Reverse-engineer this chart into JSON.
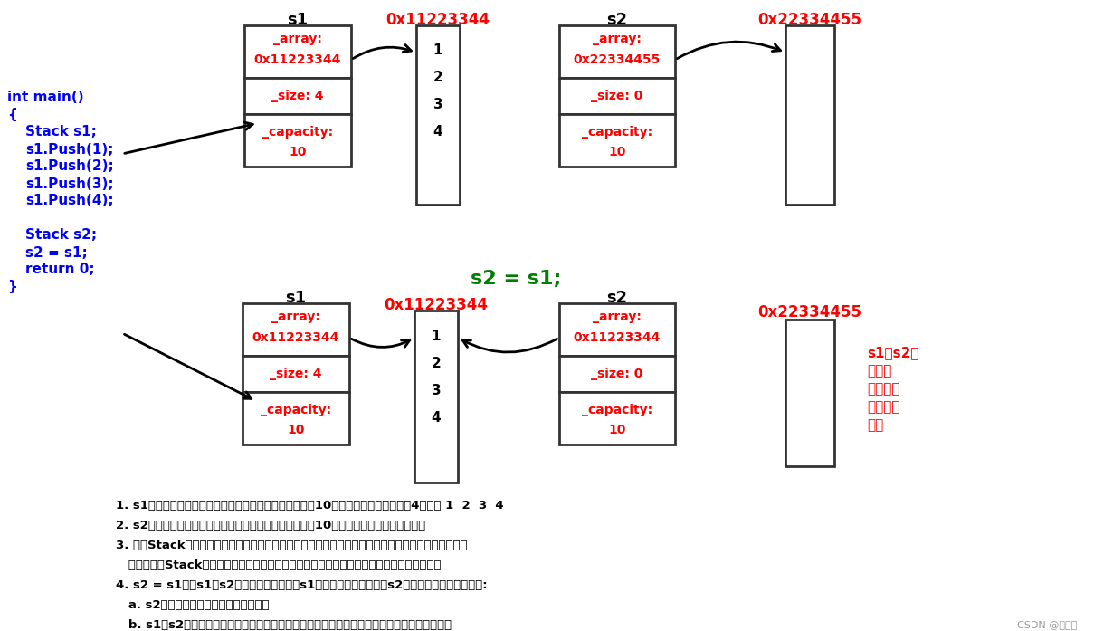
{
  "bg_color": "#ffffff",
  "red": "#ff0000",
  "blue": "#0000ff",
  "green": "#008000",
  "black": "#000000",
  "note_lines": [
    "1. s1对象调用构造函数创建，在构造函数中，默认申请了10个元素的空间，然后存了4个元素 1  2  3  4",
    "2. s2对象调用构造函数创建，在构造函数中，默认申请了10个元素的空间，没有存储元素",
    "3. 由于Stack没有显式实现赋値运算符重载，编译器会以浅拷贝的方式实现一份默认的赋値运算符重载",
    "   即只要发现Stack的对象之间相互赋値，就会将一个对象中内容原封不动拷贝到另一个对象中",
    "4. s2 = s1；当s1给s2赋値时，编译器会将s1中内容原封不动拷贝到s2中，这样会导致两个问题:",
    "   a. s2原来的空间丢失了，存在内存泄漏",
    "   b. s1和s2共享同一份内存空间，最后销毁的时会导致同一份内存空间释放两次而引起程序崩溃"
  ]
}
